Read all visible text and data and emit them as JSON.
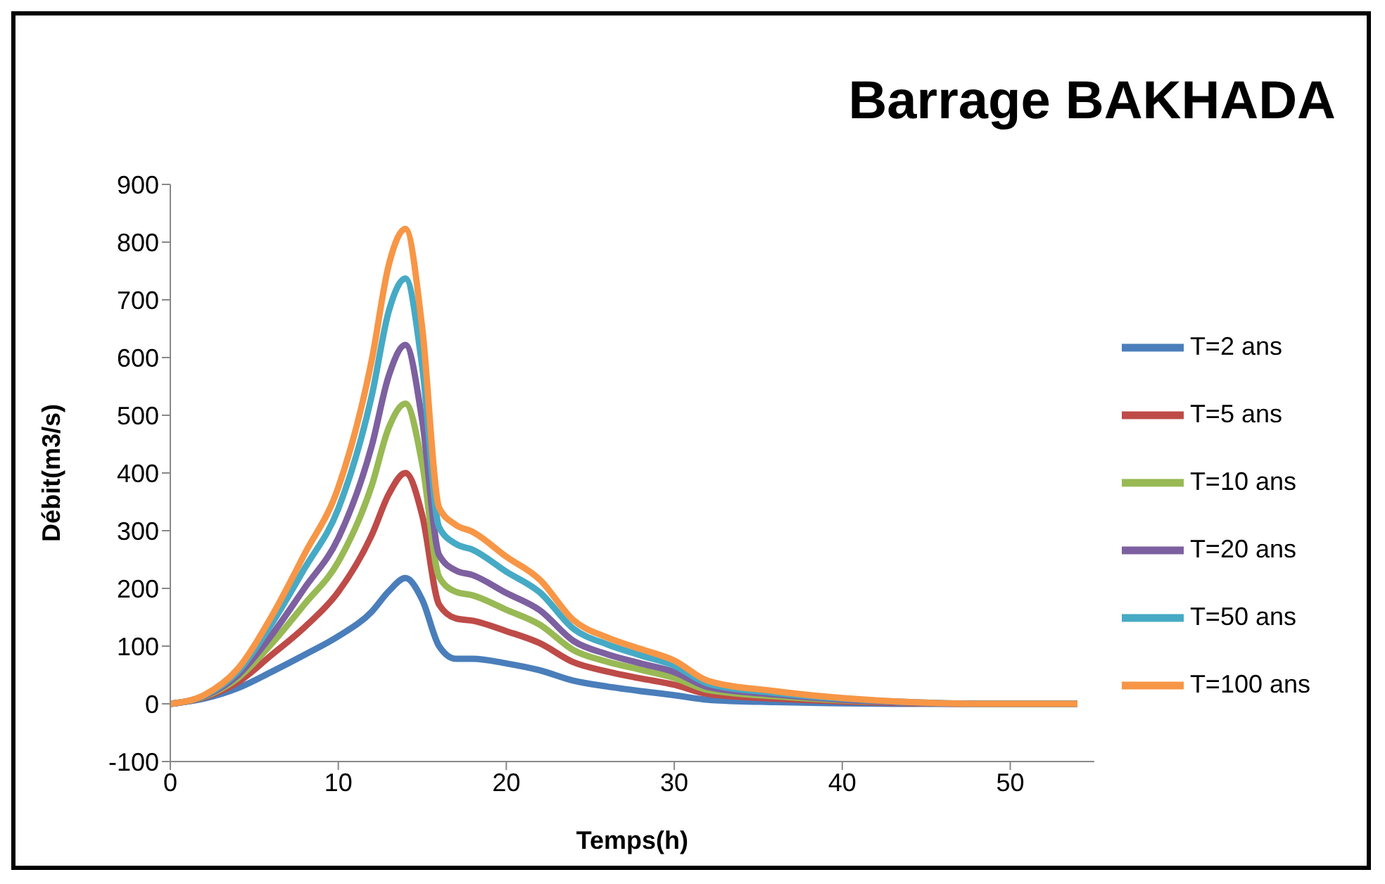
{
  "chart_data": {
    "type": "line",
    "title": "Barrage BAKHADA",
    "xlabel": "Temps(h)",
    "ylabel": "Débit(m3/s)",
    "x": [
      0,
      2,
      4,
      6,
      8,
      10,
      12,
      13,
      14,
      15,
      16,
      17,
      18,
      20,
      22,
      24,
      26,
      28,
      30,
      32,
      36,
      40,
      44,
      48,
      54
    ],
    "series": [
      {
        "name": "T=2 ans",
        "color": "#4a7ebb",
        "values": [
          0,
          9,
          27,
          55,
          85,
          117,
          160,
          195,
          218,
          180,
          100,
          78,
          78,
          70,
          58,
          40,
          30,
          22,
          15,
          7,
          3,
          1,
          0,
          0,
          0
        ]
      },
      {
        "name": "T=5 ans",
        "color": "#be4b48",
        "values": [
          0,
          11,
          37,
          84,
          133,
          194,
          293,
          363,
          400,
          326,
          172,
          148,
          144,
          126,
          105,
          72,
          56,
          44,
          33,
          17,
          9,
          4,
          1,
          0,
          0
        ]
      },
      {
        "name": "T=10 ans",
        "color": "#98b954",
        "values": [
          0,
          12,
          44,
          103,
          173,
          246,
          379,
          478,
          520,
          415,
          220,
          194,
          188,
          163,
          137,
          93,
          73,
          59,
          45,
          24,
          13,
          6,
          2,
          0,
          0
        ]
      },
      {
        "name": "T=20 ans",
        "color": "#7d60a0",
        "values": [
          0,
          13,
          49,
          118,
          201,
          287,
          448,
          568,
          622,
          490,
          258,
          231,
          223,
          192,
          162,
          109,
          86,
          70,
          55,
          29,
          16,
          7,
          2,
          0,
          0
        ]
      },
      {
        "name": "T=50 ans",
        "color": "#46aac5",
        "values": [
          0,
          14,
          55,
          137,
          235,
          338,
          535,
          680,
          737,
          583,
          306,
          277,
          267,
          229,
          193,
          130,
          103,
          84,
          66,
          35,
          19,
          9,
          3,
          0,
          0
        ]
      },
      {
        "name": "T=100 ans",
        "color": "#f79646",
        "values": [
          0,
          15,
          60,
          150,
          260,
          375,
          597,
          760,
          823,
          650,
          340,
          310,
          298,
          255,
          215,
          145,
          115,
          95,
          75,
          40,
          22,
          10,
          3,
          0,
          0
        ]
      }
    ],
    "xlim": [
      0,
      55
    ],
    "xticks": [
      0,
      10,
      20,
      30,
      40,
      50
    ],
    "ylim": [
      -100,
      900
    ],
    "yticks": [
      -100,
      0,
      100,
      200,
      300,
      400,
      500,
      600,
      700,
      800,
      900
    ],
    "grid": false,
    "legend": "right",
    "marker": "none",
    "line_style": "solid"
  }
}
